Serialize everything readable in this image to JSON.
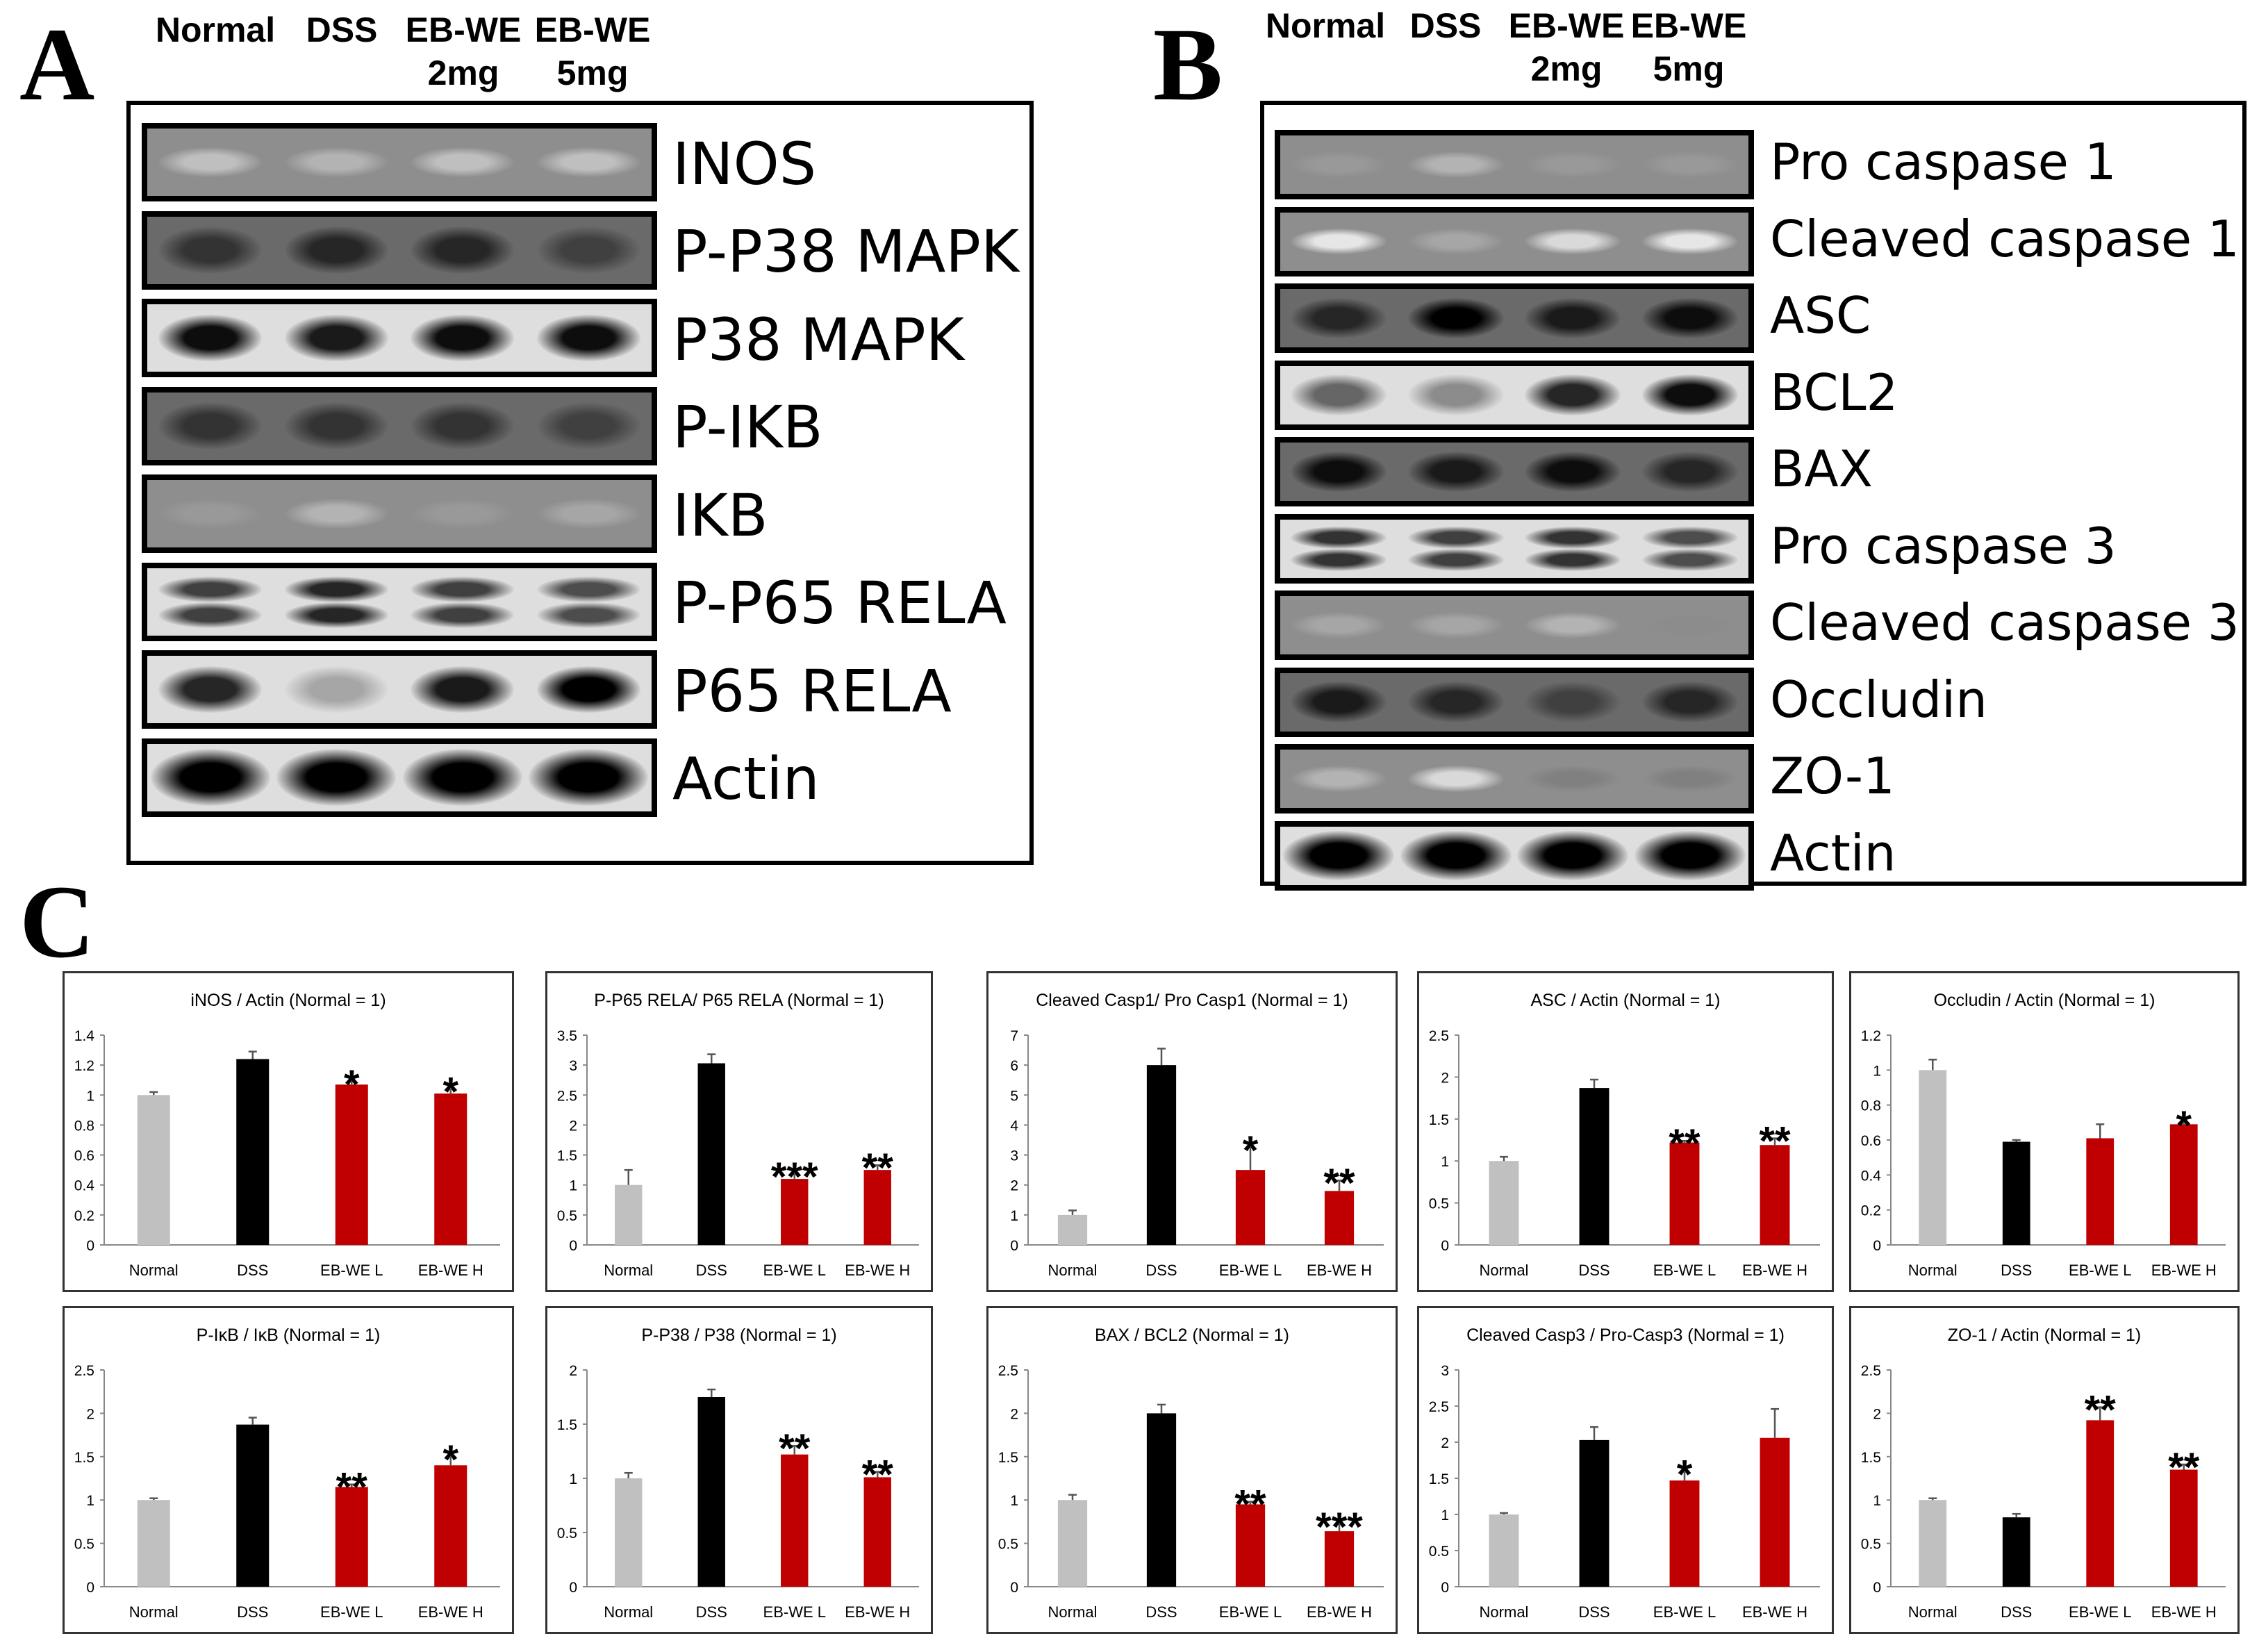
{
  "panels": {
    "a": {
      "letter": "A"
    },
    "b": {
      "letter": "B"
    },
    "c": {
      "letter": "C"
    }
  },
  "lanes": [
    {
      "line1": "Normal",
      "line2": ""
    },
    {
      "line1": "DSS",
      "line2": ""
    },
    {
      "line1": "EB-WE",
      "line2": "2mg"
    },
    {
      "line1": "EB-WE",
      "line2": "5mg"
    }
  ],
  "blots_a": [
    {
      "label": "INOS",
      "intensity": [
        0.25,
        0.3,
        0.25,
        0.25
      ],
      "style": "faint"
    },
    {
      "label": "P-P38 MAPK",
      "intensity": [
        0.8,
        0.85,
        0.85,
        0.75
      ],
      "style": "dark"
    },
    {
      "label": "P38 MAPK",
      "intensity": [
        0.95,
        0.9,
        0.95,
        0.95
      ],
      "style": "band"
    },
    {
      "label": "P-IKB",
      "intensity": [
        0.8,
        0.8,
        0.8,
        0.75
      ],
      "style": "dark"
    },
    {
      "label": "IKB",
      "intensity": [
        0.4,
        0.3,
        0.4,
        0.35
      ],
      "style": "faint"
    },
    {
      "label": "P-P65 RELA",
      "intensity": [
        0.75,
        0.85,
        0.75,
        0.7
      ],
      "style": "double"
    },
    {
      "label": "P65 RELA",
      "intensity": [
        0.85,
        0.35,
        0.9,
        1.0
      ],
      "style": "band"
    },
    {
      "label": "Actin",
      "intensity": [
        1.0,
        1.0,
        1.0,
        1.0
      ],
      "style": "actin"
    }
  ],
  "blots_b": [
    {
      "label": "Pro caspase 1",
      "intensity": [
        0.4,
        0.3,
        0.4,
        0.4
      ],
      "style": "faint"
    },
    {
      "label": "Cleaved caspase 1",
      "intensity": [
        0.1,
        0.35,
        0.15,
        0.1
      ],
      "style": "faint"
    },
    {
      "label": "ASC",
      "intensity": [
        0.85,
        1.0,
        0.9,
        0.95
      ],
      "style": "dark"
    },
    {
      "label": "BCL2",
      "intensity": [
        0.6,
        0.45,
        0.85,
        0.95
      ],
      "style": "band"
    },
    {
      "label": "BAX",
      "intensity": [
        0.95,
        0.9,
        0.95,
        0.85
      ],
      "style": "dark"
    },
    {
      "label": "Pro caspase 3",
      "intensity": [
        0.8,
        0.75,
        0.8,
        0.7
      ],
      "style": "double"
    },
    {
      "label": "Cleaved caspase 3",
      "intensity": [
        0.35,
        0.35,
        0.3,
        0.45
      ],
      "style": "faint"
    },
    {
      "label": "Occludin",
      "intensity": [
        0.9,
        0.85,
        0.75,
        0.85
      ],
      "style": "dark"
    },
    {
      "label": "ZO-1",
      "intensity": [
        0.3,
        0.15,
        0.5,
        0.5
      ],
      "style": "faint"
    },
    {
      "label": "Actin",
      "intensity": [
        1.0,
        1.0,
        1.0,
        1.0
      ],
      "style": "actin"
    }
  ],
  "colors": {
    "normal": "#c0c0c0",
    "dss": "#000000",
    "treated": "#c00000"
  },
  "chart_data": [
    {
      "type": "bar",
      "title": "iNOS / Actin (Normal = 1)",
      "categories": [
        "Normal",
        "DSS",
        "EB-WE L",
        "EB-WE H"
      ],
      "values": [
        1.0,
        1.24,
        1.07,
        1.01
      ],
      "errors": [
        0.02,
        0.05,
        0.02,
        0.03
      ],
      "significance": [
        "",
        "",
        "*",
        "*"
      ],
      "ylim": [
        0,
        1.4
      ],
      "yticks": [
        "0",
        "0.2",
        "0.4",
        "0.6",
        "0.8",
        "1",
        "1.2",
        "1.4"
      ]
    },
    {
      "type": "bar",
      "title": "P-P65 RELA/ P65 RELA (Normal = 1)",
      "categories": [
        "Normal",
        "DSS",
        "EB-WE L",
        "EB-WE H"
      ],
      "values": [
        1.0,
        3.03,
        1.1,
        1.25
      ],
      "errors": [
        0.25,
        0.15,
        0.08,
        0.08
      ],
      "significance": [
        "",
        "",
        "***",
        "**"
      ],
      "ylim": [
        0,
        3.5
      ],
      "yticks": [
        "0",
        "0.5",
        "1",
        "1.5",
        "2",
        "2.5",
        "3",
        "3.5"
      ]
    },
    {
      "type": "bar",
      "title": "Cleaved Casp1/ Pro Casp1 (Normal = 1)",
      "categories": [
        "Normal",
        "DSS",
        "EB-WE L",
        "EB-WE H"
      ],
      "values": [
        1.0,
        6.0,
        2.5,
        1.8
      ],
      "errors": [
        0.15,
        0.55,
        0.75,
        0.35
      ],
      "significance": [
        "",
        "",
        "*",
        "**"
      ],
      "ylim": [
        0,
        7
      ],
      "yticks": [
        "0",
        "1",
        "2",
        "3",
        "4",
        "5",
        "6",
        "7"
      ]
    },
    {
      "type": "bar",
      "title": "ASC / Actin (Normal = 1)",
      "categories": [
        "Normal",
        "DSS",
        "EB-WE L",
        "EB-WE H"
      ],
      "values": [
        1.0,
        1.87,
        1.22,
        1.19
      ],
      "errors": [
        0.05,
        0.1,
        0.02,
        0.08
      ],
      "significance": [
        "",
        "",
        "**",
        "**"
      ],
      "ylim": [
        0,
        2.5
      ],
      "yticks": [
        "0",
        "0.5",
        "1",
        "1.5",
        "2",
        "2.5"
      ]
    },
    {
      "type": "bar",
      "title": "Occludin / Actin (Normal = 1)",
      "categories": [
        "Normal",
        "DSS",
        "EB-WE L",
        "EB-WE H"
      ],
      "values": [
        1.0,
        0.59,
        0.61,
        0.69
      ],
      "errors": [
        0.06,
        0.01,
        0.08,
        0.01
      ],
      "significance": [
        "",
        "",
        "",
        "*"
      ],
      "ylim": [
        0,
        1.2
      ],
      "yticks": [
        "0",
        "0.2",
        "0.4",
        "0.6",
        "0.8",
        "1",
        "1.2"
      ]
    },
    {
      "type": "bar",
      "title": "P-IκB / IκB (Normal = 1)",
      "categories": [
        "Normal",
        "DSS",
        "EB-WE L",
        "EB-WE H"
      ],
      "values": [
        1.0,
        1.87,
        1.15,
        1.4
      ],
      "errors": [
        0.02,
        0.08,
        0.03,
        0.1
      ],
      "significance": [
        "",
        "",
        "**",
        "*"
      ],
      "ylim": [
        0,
        2.5
      ],
      "yticks": [
        "0",
        "0.5",
        "1",
        "1.5",
        "2",
        "2.5"
      ]
    },
    {
      "type": "bar",
      "title": "P-P38 / P38 (Normal = 1)",
      "categories": [
        "Normal",
        "DSS",
        "EB-WE L",
        "EB-WE H"
      ],
      "values": [
        1.0,
        1.75,
        1.22,
        1.01
      ],
      "errors": [
        0.05,
        0.07,
        0.08,
        0.05
      ],
      "significance": [
        "",
        "",
        "**",
        "**"
      ],
      "ylim": [
        0,
        2
      ],
      "yticks": [
        "0",
        "0.5",
        "1",
        "1.5",
        "2"
      ]
    },
    {
      "type": "bar",
      "title": "BAX / BCL2 (Normal = 1)",
      "categories": [
        "Normal",
        "DSS",
        "EB-WE L",
        "EB-WE H"
      ],
      "values": [
        1.0,
        2.0,
        0.95,
        0.64
      ],
      "errors": [
        0.06,
        0.1,
        0.03,
        0.08
      ],
      "significance": [
        "",
        "",
        "**",
        "***"
      ],
      "ylim": [
        0,
        2.5
      ],
      "yticks": [
        "0",
        "0.5",
        "1",
        "1.5",
        "2",
        "2.5"
      ]
    },
    {
      "type": "bar",
      "title": "Cleaved Casp3 / Pro-Casp3 (Normal = 1)",
      "categories": [
        "Normal",
        "DSS",
        "EB-WE L",
        "EB-WE H"
      ],
      "values": [
        1.0,
        2.03,
        1.47,
        2.06
      ],
      "errors": [
        0.02,
        0.18,
        0.12,
        0.4
      ],
      "significance": [
        "",
        "",
        "*",
        ""
      ],
      "ylim": [
        0,
        3
      ],
      "yticks": [
        "0",
        "0.5",
        "1",
        "1.5",
        "2",
        "2.5",
        "3"
      ]
    },
    {
      "type": "bar",
      "title": "ZO-1 / Actin (Normal = 1)",
      "categories": [
        "Normal",
        "DSS",
        "EB-WE L",
        "EB-WE H"
      ],
      "values": [
        1.0,
        0.8,
        1.92,
        1.35
      ],
      "errors": [
        0.02,
        0.04,
        0.15,
        0.06
      ],
      "significance": [
        "",
        "",
        "**",
        "**"
      ],
      "ylim": [
        0,
        2.5
      ],
      "yticks": [
        "0",
        "0.5",
        "1",
        "1.5",
        "2",
        "2.5"
      ]
    }
  ]
}
